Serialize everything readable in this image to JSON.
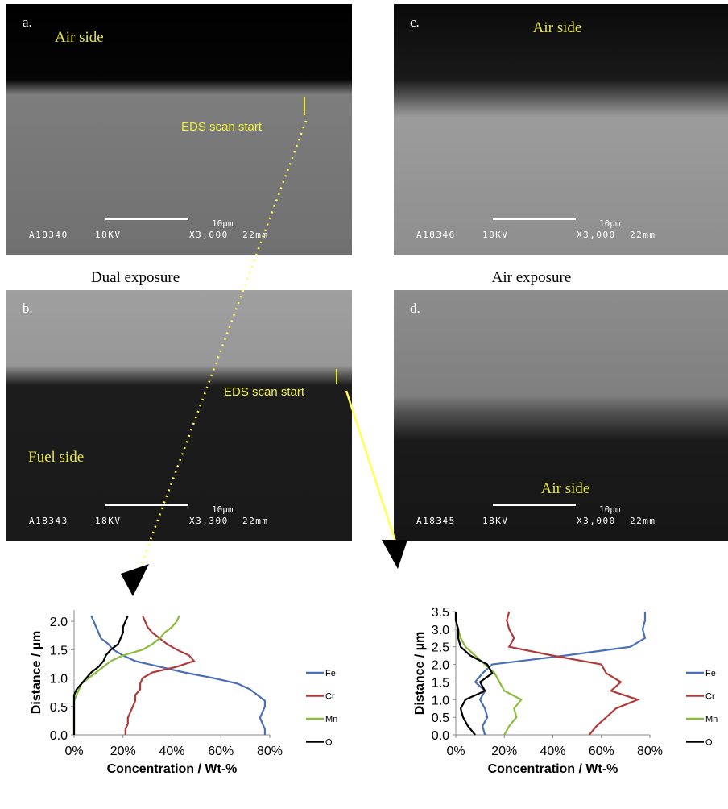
{
  "panels": [
    {
      "label": "a.",
      "side": "Air side",
      "eds": "EDS scan start",
      "scale": "10µm",
      "info": [
        "A18340",
        "18KV",
        "X3,000",
        "22mm"
      ]
    },
    {
      "label": "c.",
      "side": "Air side",
      "scale": "10µm",
      "info": [
        "A18346",
        "18KV",
        "X3,000",
        "22mm"
      ]
    },
    {
      "label": "b.",
      "side": "Fuel side",
      "eds": "EDS scan start",
      "scale": "10µm",
      "info": [
        "A18343",
        "18KV",
        "X3,300",
        "22mm"
      ]
    },
    {
      "label": "d.",
      "side": "Air side",
      "scale": "10µm",
      "info": [
        "A18345",
        "18KV",
        "X3,000",
        "22mm"
      ]
    }
  ],
  "captions": [
    "Dual exposure",
    "Air exposure"
  ],
  "chart_data": [
    {
      "type": "line",
      "orientation": "horizontal",
      "xlabel": "Concentration / Wt-%",
      "ylabel": "Distance / µm",
      "y": [
        0,
        0.1,
        0.2,
        0.3,
        0.4,
        0.5,
        0.6,
        0.7,
        0.8,
        0.9,
        1.0,
        1.1,
        1.2,
        1.3,
        1.4,
        1.5,
        1.6,
        1.7,
        1.8,
        1.9,
        2.0,
        2.1
      ],
      "series": [
        {
          "name": "Fe",
          "color": "#4a6fb5",
          "values": [
            78,
            78,
            77,
            76,
            77,
            78,
            78,
            75,
            72,
            67,
            57,
            45,
            35,
            25,
            20,
            16,
            14,
            11,
            10,
            9,
            8,
            7
          ]
        },
        {
          "name": "Cr",
          "color": "#b03a3a",
          "values": [
            21,
            21,
            22,
            22,
            23,
            24,
            25,
            25,
            27,
            27,
            28,
            32,
            42,
            49,
            47,
            42,
            38,
            35,
            32,
            30,
            29,
            28
          ]
        },
        {
          "name": "Mn",
          "color": "#8bbb3a",
          "values": [
            0,
            0,
            0,
            0,
            0,
            0,
            0,
            1,
            2,
            3,
            6,
            9,
            12,
            15,
            20,
            28,
            32,
            35,
            37,
            40,
            42,
            43
          ]
        },
        {
          "name": "O",
          "color": "#000000",
          "values": [
            0,
            0,
            0,
            0,
            0,
            0,
            0,
            0,
            1,
            3,
            5,
            7,
            10,
            12,
            13,
            15,
            18,
            19,
            20,
            20,
            21,
            22
          ]
        }
      ],
      "xlim": [
        0,
        80
      ],
      "xticks": [
        {
          "value": 0,
          "label": "0%"
        },
        {
          "value": 20,
          "label": "20%"
        },
        {
          "value": 40,
          "label": "40%"
        },
        {
          "value": 60,
          "label": "60%"
        },
        {
          "value": 80,
          "label": "80%"
        }
      ],
      "ylim": [
        0,
        2.2
      ],
      "yticks": [
        {
          "value": 0,
          "label": "0.0"
        },
        {
          "value": 0.5,
          "label": "0.5"
        },
        {
          "value": 1,
          "label": "1.0"
        },
        {
          "value": 1.5,
          "label": "1.5"
        },
        {
          "value": 2,
          "label": "2.0"
        }
      ],
      "legend": "right"
    },
    {
      "type": "line",
      "orientation": "horizontal",
      "xlabel": "Concentration / Wt-%",
      "ylabel": "Distance / µm",
      "y": [
        0,
        0.25,
        0.5,
        0.75,
        1.0,
        1.25,
        1.5,
        1.75,
        2.0,
        2.25,
        2.5,
        2.75,
        3.0,
        3.25,
        3.5
      ],
      "series": [
        {
          "name": "Fe",
          "color": "#4a6fb5",
          "values": [
            12,
            11,
            13,
            12,
            10,
            12,
            8,
            11,
            15,
            45,
            72,
            78,
            77,
            78,
            78
          ]
        },
        {
          "name": "Cr",
          "color": "#b03a3a",
          "values": [
            55,
            58,
            62,
            66,
            75,
            64,
            68,
            62,
            60,
            40,
            22,
            24,
            22,
            21,
            22
          ]
        },
        {
          "name": "Mn",
          "color": "#8bbb3a",
          "values": [
            20,
            22,
            25,
            24,
            27,
            20,
            18,
            16,
            12,
            8,
            4,
            2,
            1,
            0,
            0
          ]
        },
        {
          "name": "O",
          "color": "#000000",
          "values": [
            8,
            5,
            3,
            2,
            4,
            12,
            10,
            15,
            13,
            6,
            2,
            1,
            1,
            0,
            0
          ]
        }
      ],
      "xlim": [
        0,
        80
      ],
      "xticks": [
        {
          "value": 0,
          "label": "0%"
        },
        {
          "value": 20,
          "label": "20%"
        },
        {
          "value": 40,
          "label": "40%"
        },
        {
          "value": 60,
          "label": "60%"
        },
        {
          "value": 80,
          "label": "80%"
        }
      ],
      "ylim": [
        0,
        3.5
      ],
      "yticks": [
        {
          "value": 0,
          "label": "0.0"
        },
        {
          "value": 0.5,
          "label": "0.5"
        },
        {
          "value": 1,
          "label": "1.0"
        },
        {
          "value": 1.5,
          "label": "1.5"
        },
        {
          "value": 2,
          "label": "2.0"
        },
        {
          "value": 2.5,
          "label": "2.5"
        },
        {
          "value": 3,
          "label": "3.0"
        },
        {
          "value": 3.5,
          "label": "3.5"
        }
      ],
      "legend": "right"
    }
  ]
}
